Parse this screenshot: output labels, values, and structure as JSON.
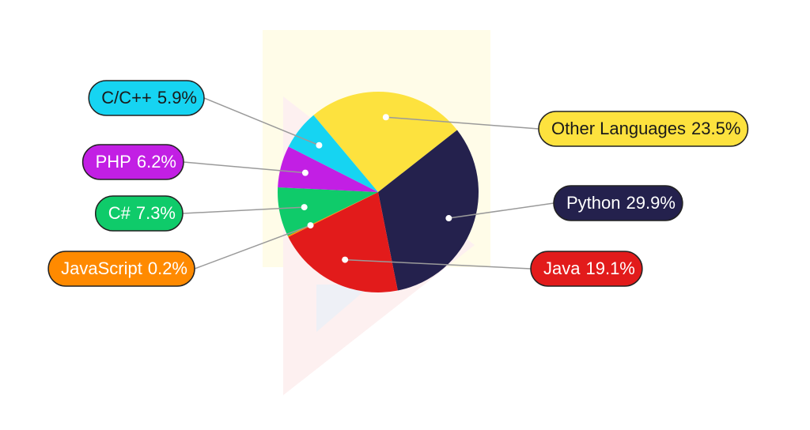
{
  "chart_data": {
    "type": "pie",
    "categories": [
      "Other Languages",
      "Python",
      "Java",
      "JavaScript",
      "C#",
      "PHP",
      "C/C++"
    ],
    "values": [
      23.5,
      29.9,
      19.1,
      0.2,
      7.3,
      6.2,
      5.9
    ],
    "value_labels": [
      "23.5%",
      "29.9%",
      "19.1%",
      "0.2%",
      "7.3%",
      "6.2%",
      "5.9%"
    ],
    "colors": [
      "#fde23e",
      "#24214d",
      "#e21b1b",
      "#ff8a00",
      "#0fcb6a",
      "#c21fe4",
      "#16d4f2"
    ]
  }
}
